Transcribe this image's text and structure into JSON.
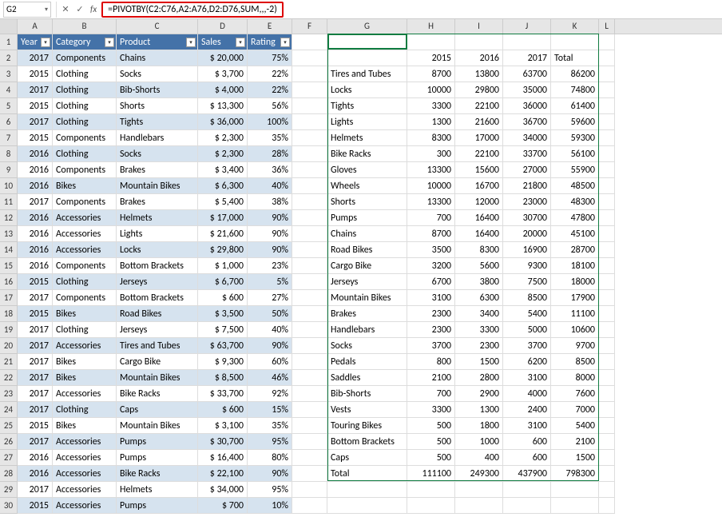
{
  "nameBox": "G2",
  "formula": "=PIVOTBY(C2:C76,A2:A76,D2:D76,SUM,,,-2)",
  "columns": [
    "A",
    "B",
    "C",
    "D",
    "E",
    "F",
    "G",
    "H",
    "I",
    "J",
    "K",
    "L"
  ],
  "tableHeaders": [
    "Year",
    "Category",
    "Product",
    "Sales",
    "Rating"
  ],
  "tableData": [
    {
      "y": "2017",
      "c": "Components",
      "p": "Chains",
      "s": "$ 20,000",
      "r": "75%"
    },
    {
      "y": "2015",
      "c": "Clothing",
      "p": "Socks",
      "s": "$  3,700",
      "r": "22%"
    },
    {
      "y": "2017",
      "c": "Clothing",
      "p": "Bib-Shorts",
      "s": "$  4,000",
      "r": "22%"
    },
    {
      "y": "2015",
      "c": "Clothing",
      "p": "Shorts",
      "s": "$ 13,300",
      "r": "56%"
    },
    {
      "y": "2017",
      "c": "Clothing",
      "p": "Tights",
      "s": "$ 36,000",
      "r": "100%"
    },
    {
      "y": "2015",
      "c": "Components",
      "p": "Handlebars",
      "s": "$  2,300",
      "r": "35%"
    },
    {
      "y": "2016",
      "c": "Clothing",
      "p": "Socks",
      "s": "$  2,300",
      "r": "28%"
    },
    {
      "y": "2016",
      "c": "Components",
      "p": "Brakes",
      "s": "$  3,400",
      "r": "36%"
    },
    {
      "y": "2016",
      "c": "Bikes",
      "p": "Mountain Bikes",
      "s": "$  6,300",
      "r": "40%"
    },
    {
      "y": "2017",
      "c": "Components",
      "p": "Brakes",
      "s": "$  5,400",
      "r": "38%"
    },
    {
      "y": "2016",
      "c": "Accessories",
      "p": "Helmets",
      "s": "$ 17,000",
      "r": "90%"
    },
    {
      "y": "2016",
      "c": "Accessories",
      "p": "Lights",
      "s": "$ 21,600",
      "r": "90%"
    },
    {
      "y": "2016",
      "c": "Accessories",
      "p": "Locks",
      "s": "$ 29,800",
      "r": "90%"
    },
    {
      "y": "2016",
      "c": "Components",
      "p": "Bottom Brackets",
      "s": "$  1,000",
      "r": "23%"
    },
    {
      "y": "2015",
      "c": "Clothing",
      "p": "Jerseys",
      "s": "$  6,700",
      "r": "5%"
    },
    {
      "y": "2017",
      "c": "Components",
      "p": "Bottom Brackets",
      "s": "$    600",
      "r": "27%"
    },
    {
      "y": "2015",
      "c": "Bikes",
      "p": "Road Bikes",
      "s": "$  3,500",
      "r": "50%"
    },
    {
      "y": "2017",
      "c": "Clothing",
      "p": "Jerseys",
      "s": "$  7,500",
      "r": "40%"
    },
    {
      "y": "2017",
      "c": "Accessories",
      "p": "Tires and Tubes",
      "s": "$ 63,700",
      "r": "90%"
    },
    {
      "y": "2017",
      "c": "Bikes",
      "p": "Cargo Bike",
      "s": "$  9,300",
      "r": "60%"
    },
    {
      "y": "2017",
      "c": "Bikes",
      "p": "Mountain Bikes",
      "s": "$  8,500",
      "r": "46%"
    },
    {
      "y": "2017",
      "c": "Accessories",
      "p": "Bike Racks",
      "s": "$ 33,700",
      "r": "92%"
    },
    {
      "y": "2017",
      "c": "Clothing",
      "p": "Caps",
      "s": "$    600",
      "r": "15%"
    },
    {
      "y": "2015",
      "c": "Bikes",
      "p": "Mountain Bikes",
      "s": "$  3,100",
      "r": "35%"
    },
    {
      "y": "2017",
      "c": "Accessories",
      "p": "Pumps",
      "s": "$ 30,700",
      "r": "95%"
    },
    {
      "y": "2016",
      "c": "Accessories",
      "p": "Pumps",
      "s": "$ 16,400",
      "r": "80%"
    },
    {
      "y": "2016",
      "c": "Accessories",
      "p": "Bike Racks",
      "s": "$ 22,100",
      "r": "90%"
    },
    {
      "y": "2017",
      "c": "Accessories",
      "p": "Helmets",
      "s": "$ 34,000",
      "r": "95%"
    },
    {
      "y": "2015",
      "c": "Accessories",
      "p": "Pumps",
      "s": "$    700",
      "r": "10%"
    }
  ],
  "pivotColHeaders": [
    "",
    "2015",
    "2016",
    "2017",
    "Total"
  ],
  "pivotData": [
    {
      "p": "Tires and Tubes",
      "v": [
        "8700",
        "13800",
        "63700",
        "86200"
      ]
    },
    {
      "p": "Locks",
      "v": [
        "10000",
        "29800",
        "35000",
        "74800"
      ]
    },
    {
      "p": "Tights",
      "v": [
        "3300",
        "22100",
        "36000",
        "61400"
      ]
    },
    {
      "p": "Lights",
      "v": [
        "1300",
        "21600",
        "36700",
        "59600"
      ]
    },
    {
      "p": "Helmets",
      "v": [
        "8300",
        "17000",
        "34000",
        "59300"
      ]
    },
    {
      "p": "Bike Racks",
      "v": [
        "300",
        "22100",
        "33700",
        "56100"
      ]
    },
    {
      "p": "Gloves",
      "v": [
        "13300",
        "15600",
        "27000",
        "55900"
      ]
    },
    {
      "p": "Wheels",
      "v": [
        "10000",
        "16700",
        "21800",
        "48500"
      ]
    },
    {
      "p": "Shorts",
      "v": [
        "13300",
        "12000",
        "23000",
        "48300"
      ]
    },
    {
      "p": "Pumps",
      "v": [
        "700",
        "16400",
        "30700",
        "47800"
      ]
    },
    {
      "p": "Chains",
      "v": [
        "8700",
        "16400",
        "20000",
        "45100"
      ]
    },
    {
      "p": "Road Bikes",
      "v": [
        "3500",
        "8300",
        "16900",
        "28700"
      ]
    },
    {
      "p": "Cargo Bike",
      "v": [
        "3200",
        "5600",
        "9300",
        "18100"
      ]
    },
    {
      "p": "Jerseys",
      "v": [
        "6700",
        "3800",
        "7500",
        "18000"
      ]
    },
    {
      "p": "Mountain Bikes",
      "v": [
        "3100",
        "6300",
        "8500",
        "17900"
      ]
    },
    {
      "p": "Brakes",
      "v": [
        "2300",
        "3400",
        "5400",
        "11100"
      ]
    },
    {
      "p": "Handlebars",
      "v": [
        "2300",
        "3300",
        "5000",
        "10600"
      ]
    },
    {
      "p": "Socks",
      "v": [
        "3700",
        "2300",
        "3700",
        "9700"
      ]
    },
    {
      "p": "Pedals",
      "v": [
        "800",
        "1500",
        "6200",
        "8500"
      ]
    },
    {
      "p": "Saddles",
      "v": [
        "2100",
        "2800",
        "3100",
        "8000"
      ]
    },
    {
      "p": "Bib-Shorts",
      "v": [
        "700",
        "2900",
        "4000",
        "7600"
      ]
    },
    {
      "p": "Vests",
      "v": [
        "3300",
        "1300",
        "2400",
        "7000"
      ]
    },
    {
      "p": "Touring Bikes",
      "v": [
        "500",
        "1800",
        "3100",
        "5400"
      ]
    },
    {
      "p": "Bottom Brackets",
      "v": [
        "500",
        "1000",
        "600",
        "2100"
      ]
    },
    {
      "p": "Caps",
      "v": [
        "500",
        "400",
        "600",
        "1500"
      ]
    },
    {
      "p": "Total",
      "v": [
        "111100",
        "249300",
        "437900",
        "798300"
      ]
    }
  ],
  "style": {
    "tableHeaderBg": "#4472a8",
    "bandColor": "#d6e3ef",
    "spillBorderColor": "#107c41",
    "formulaHighlight": "#d00"
  }
}
